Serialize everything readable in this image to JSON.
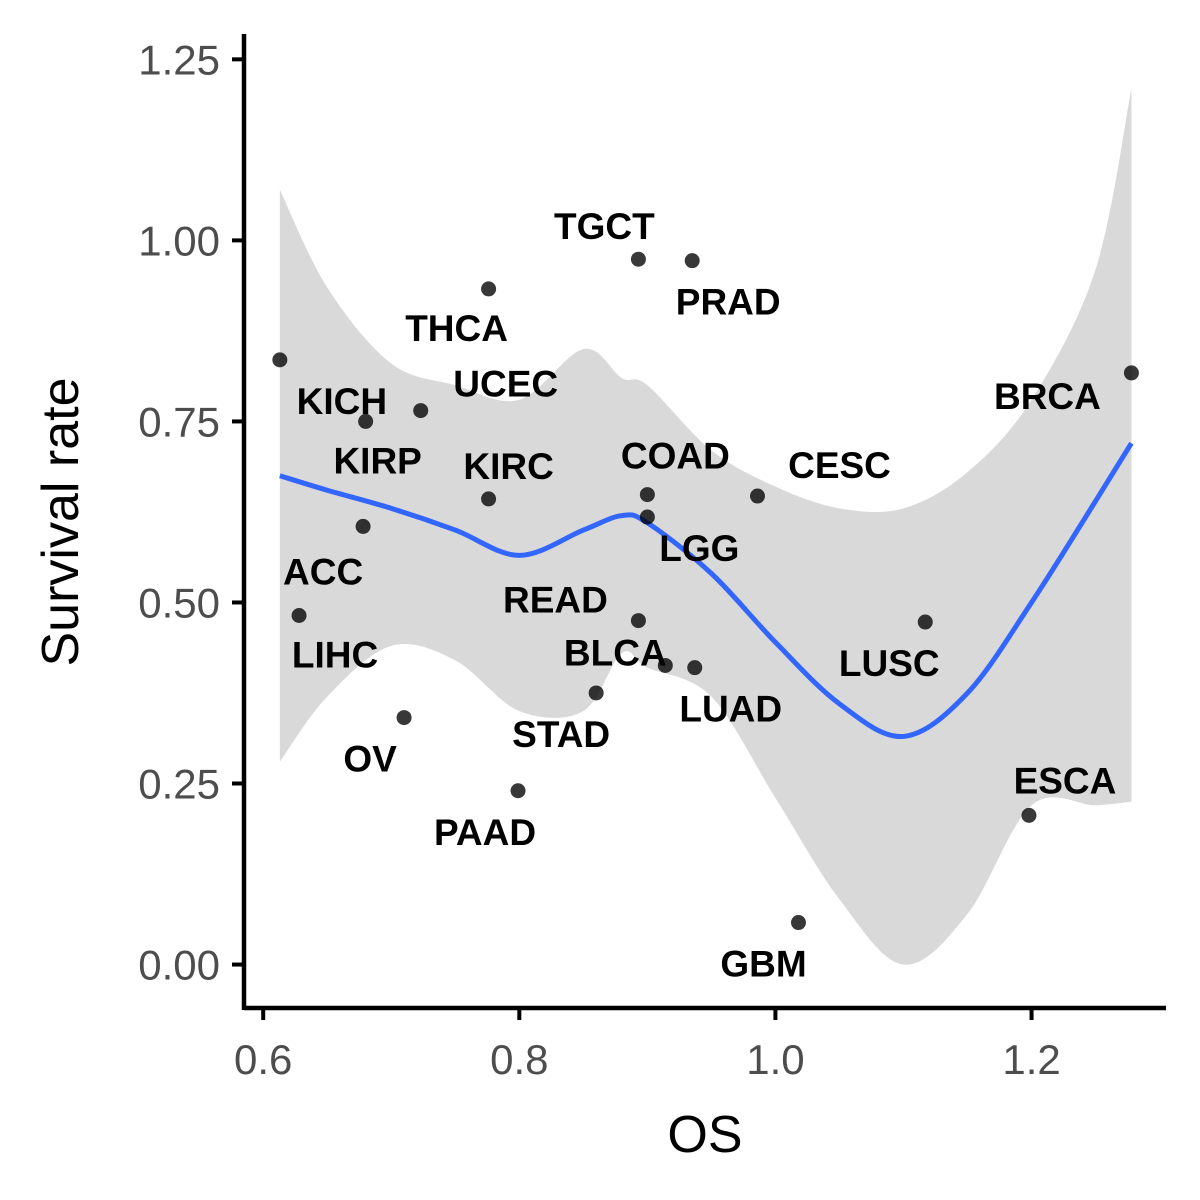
{
  "chart_data": {
    "type": "scatter",
    "xlabel": "OS",
    "ylabel": "Survival rate",
    "xlim": [
      0.585,
      1.305
    ],
    "ylim": [
      -0.06,
      1.285
    ],
    "x_ticks": [
      "0.6",
      "0.8",
      "1.0",
      "1.2"
    ],
    "y_ticks": [
      "0.00",
      "0.25",
      "0.50",
      "0.75",
      "1.00",
      "1.25"
    ],
    "grid": false,
    "legend": "none",
    "colors": {
      "points": "#000000",
      "smooth_line": "#3366ff",
      "confidence_band": "#d9d9d9",
      "axis": "#000000",
      "tick_text": "#4d4d4d"
    },
    "points": [
      {
        "label": "KICH",
        "x": 0.613,
        "y": 0.835
      },
      {
        "label": "KIRP",
        "x": 0.68,
        "y": 0.75
      },
      {
        "label": "ACC",
        "x": 0.678,
        "y": 0.605
      },
      {
        "label": "LIHC",
        "x": 0.628,
        "y": 0.482
      },
      {
        "label": "UCEC",
        "x": 0.723,
        "y": 0.765
      },
      {
        "label": "THCA",
        "x": 0.776,
        "y": 0.933
      },
      {
        "label": "KIRC",
        "x": 0.776,
        "y": 0.643
      },
      {
        "label": "OV",
        "x": 0.71,
        "y": 0.341
      },
      {
        "label": "PAAD",
        "x": 0.799,
        "y": 0.24
      },
      {
        "label": "STAD",
        "x": 0.86,
        "y": 0.375
      },
      {
        "label": "BLCA",
        "x": 0.914,
        "y": 0.413
      },
      {
        "label": "READ",
        "x": 0.893,
        "y": 0.475
      },
      {
        "label": "LUAD",
        "x": 0.937,
        "y": 0.41
      },
      {
        "label": "LGG",
        "x": 0.9,
        "y": 0.618
      },
      {
        "label": "COAD",
        "x": 0.9,
        "y": 0.649
      },
      {
        "label": "TGCT",
        "x": 0.893,
        "y": 0.974
      },
      {
        "label": "PRAD",
        "x": 0.935,
        "y": 0.972
      },
      {
        "label": "CESC",
        "x": 0.986,
        "y": 0.647
      },
      {
        "label": "GBM",
        "x": 1.018,
        "y": 0.058
      },
      {
        "label": "LUSC",
        "x": 1.117,
        "y": 0.473
      },
      {
        "label": "ESCA",
        "x": 1.198,
        "y": 0.206
      },
      {
        "label": "BRCA",
        "x": 1.278,
        "y": 0.817
      }
    ],
    "smooth": {
      "x": [
        0.613,
        0.65,
        0.7,
        0.75,
        0.8,
        0.85,
        0.88,
        0.9,
        0.95,
        1.0,
        1.05,
        1.1,
        1.15,
        1.2,
        1.25,
        1.278
      ],
      "y": [
        0.675,
        0.655,
        0.63,
        0.6,
        0.565,
        0.6,
        0.62,
        0.61,
        0.54,
        0.445,
        0.36,
        0.315,
        0.375,
        0.5,
        0.64,
        0.72
      ],
      "lower": [
        0.28,
        0.37,
        0.44,
        0.42,
        0.35,
        0.35,
        0.43,
        0.41,
        0.37,
        0.23,
        0.09,
        0.0,
        0.07,
        0.22,
        0.22,
        0.225
      ],
      "upper": [
        1.07,
        0.935,
        0.83,
        0.8,
        0.78,
        0.85,
        0.81,
        0.8,
        0.71,
        0.66,
        0.63,
        0.63,
        0.68,
        0.78,
        0.96,
        1.21
      ]
    }
  }
}
